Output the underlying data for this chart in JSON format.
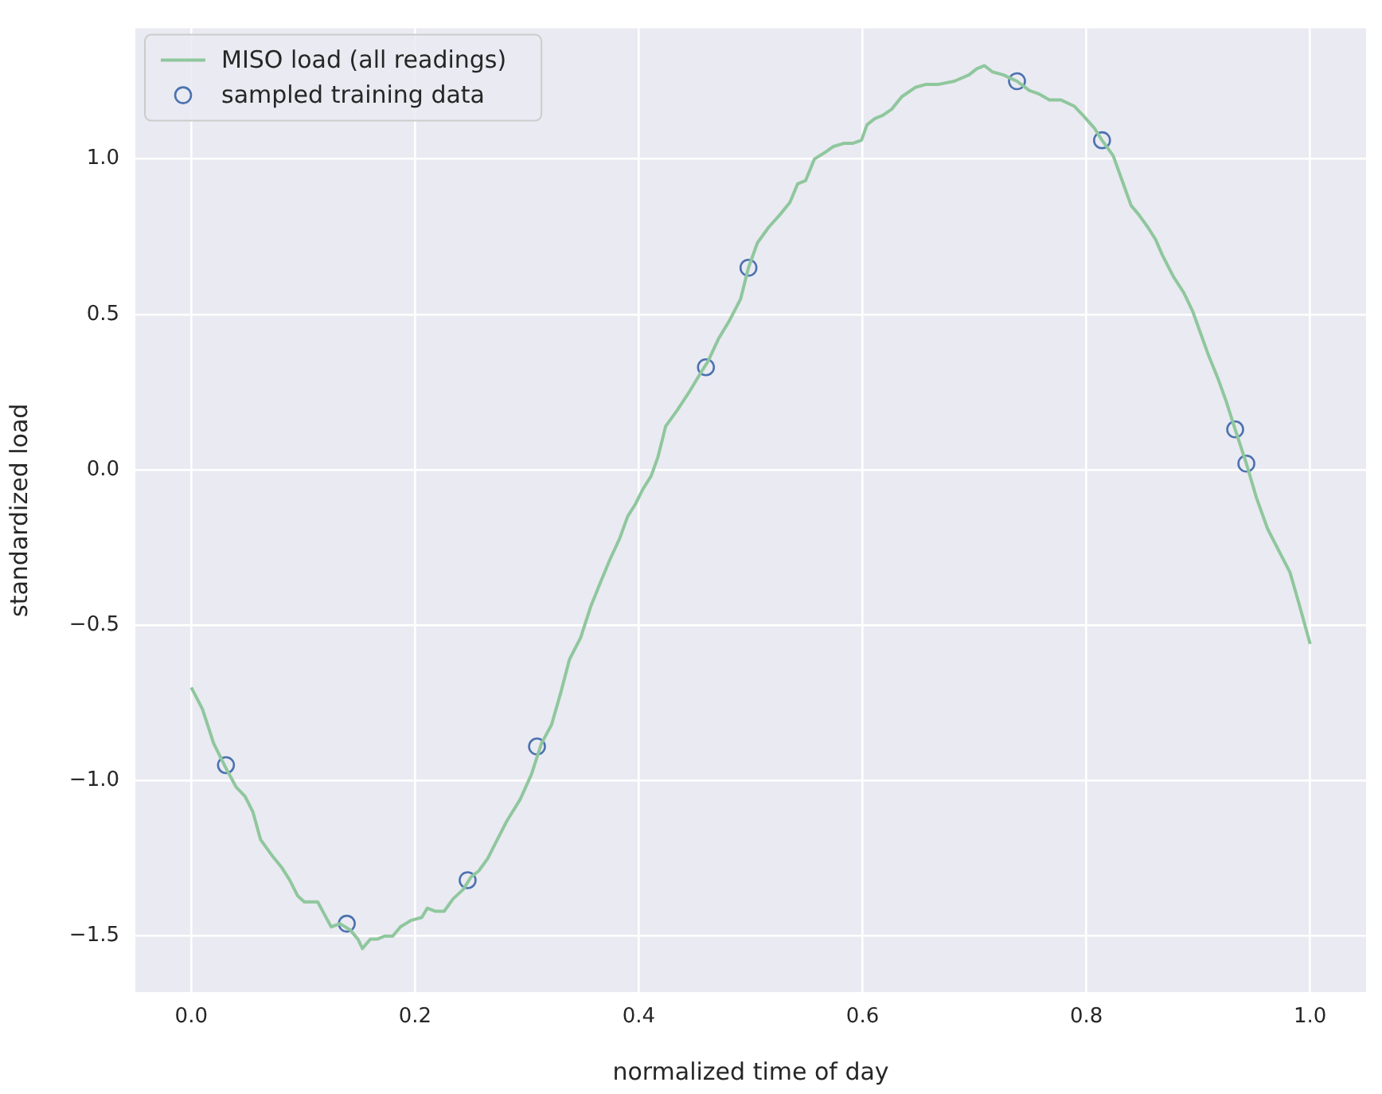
{
  "chart_data": {
    "type": "line",
    "xlabel": "normalized time of day",
    "ylabel": "standardized load",
    "xlim": [
      -0.05,
      1.05
    ],
    "ylim": [
      -1.68,
      1.42
    ],
    "xticks": [
      {
        "value": 0,
        "label": "0.0"
      },
      0.2,
      0.4,
      0.6,
      0.8,
      {
        "value": 1,
        "label": "1.0"
      }
    ],
    "yticks": [
      {
        "value": -1.5,
        "label": "−1.5"
      },
      {
        "value": -1,
        "label": "−1.0"
      },
      {
        "value": -0.5,
        "label": "−0.5"
      },
      {
        "value": 0,
        "label": "0.0"
      },
      0.5,
      {
        "value": 1,
        "label": "1.0"
      }
    ],
    "grid": true,
    "legend": "top left",
    "series": [
      {
        "name": "MISO load (all readings)",
        "type": "line",
        "color": "#8fc79d",
        "marker": "none",
        "x": [
          0,
          0.01,
          0.02,
          0.031,
          0.04,
          0.048,
          0.055,
          0.062,
          0.072,
          0.081,
          0.088,
          0.095,
          0.101,
          0.106,
          0.113,
          0.119,
          0.125,
          0.133,
          0.142,
          0.149,
          0.153,
          0.16,
          0.166,
          0.173,
          0.18,
          0.187,
          0.196,
          0.206,
          0.211,
          0.218,
          0.226,
          0.234,
          0.243,
          0.25,
          0.257,
          0.265,
          0.272,
          0.282,
          0.294,
          0.304,
          0.313,
          0.322,
          0.33,
          0.338,
          0.348,
          0.357,
          0.366,
          0.374,
          0.383,
          0.39,
          0.397,
          0.404,
          0.411,
          0.417,
          0.424,
          0.434,
          0.445,
          0.455,
          0.462,
          0.471,
          0.481,
          0.491,
          0.498,
          0.506,
          0.516,
          0.526,
          0.535,
          0.542,
          0.549,
          0.557,
          0.566,
          0.574,
          0.583,
          0.591,
          0.599,
          0.604,
          0.611,
          0.618,
          0.626,
          0.635,
          0.647,
          0.657,
          0.668,
          0.682,
          0.695,
          0.702,
          0.709,
          0.716,
          0.726,
          0.738,
          0.749,
          0.757,
          0.767,
          0.777,
          0.789,
          0.797,
          0.807,
          0.814,
          0.824,
          0.831,
          0.84,
          0.847,
          0.855,
          0.862,
          0.868,
          0.878,
          0.887,
          0.895,
          0.902,
          0.909,
          0.918,
          0.925,
          0.933,
          0.943,
          0.952,
          0.962,
          0.972,
          0.982,
          0.99,
          1
        ],
        "values": [
          -0.7,
          -0.77,
          -0.88,
          -0.96,
          -1.02,
          -1.05,
          -1.1,
          -1.19,
          -1.24,
          -1.28,
          -1.32,
          -1.37,
          -1.39,
          -1.39,
          -1.39,
          -1.43,
          -1.47,
          -1.46,
          -1.48,
          -1.51,
          -1.54,
          -1.51,
          -1.51,
          -1.5,
          -1.5,
          -1.47,
          -1.45,
          -1.44,
          -1.41,
          -1.42,
          -1.42,
          -1.38,
          -1.35,
          -1.31,
          -1.29,
          -1.25,
          -1.2,
          -1.13,
          -1.06,
          -0.98,
          -0.88,
          -0.82,
          -0.72,
          -0.61,
          -0.54,
          -0.44,
          -0.36,
          -0.29,
          -0.22,
          -0.15,
          -0.11,
          -0.06,
          -0.02,
          0.04,
          0.14,
          0.19,
          0.25,
          0.31,
          0.35,
          0.42,
          0.48,
          0.55,
          0.65,
          0.73,
          0.78,
          0.82,
          0.86,
          0.92,
          0.93,
          1,
          1.02,
          1.04,
          1.05,
          1.05,
          1.06,
          1.11,
          1.13,
          1.14,
          1.16,
          1.2,
          1.23,
          1.24,
          1.24,
          1.25,
          1.27,
          1.29,
          1.3,
          1.28,
          1.27,
          1.25,
          1.22,
          1.21,
          1.19,
          1.19,
          1.17,
          1.14,
          1.1,
          1.06,
          1.01,
          0.94,
          0.85,
          0.82,
          0.78,
          0.74,
          0.69,
          0.62,
          0.57,
          0.51,
          0.44,
          0.37,
          0.29,
          0.22,
          0.13,
          0.02,
          -0.09,
          -0.19,
          -0.26,
          -0.33,
          -0.43,
          -0.56
        ]
      },
      {
        "name": "sampled training data",
        "type": "scatter",
        "color": "#4c72b0",
        "marker": "circle",
        "x": [
          0.031,
          0.139,
          0.247,
          0.309,
          0.46,
          0.498,
          0.738,
          0.814,
          0.933,
          0.943
        ],
        "values": [
          -0.95,
          -1.46,
          -1.32,
          -0.89,
          0.33,
          0.65,
          1.25,
          1.06,
          0.13,
          0.02
        ]
      }
    ]
  }
}
